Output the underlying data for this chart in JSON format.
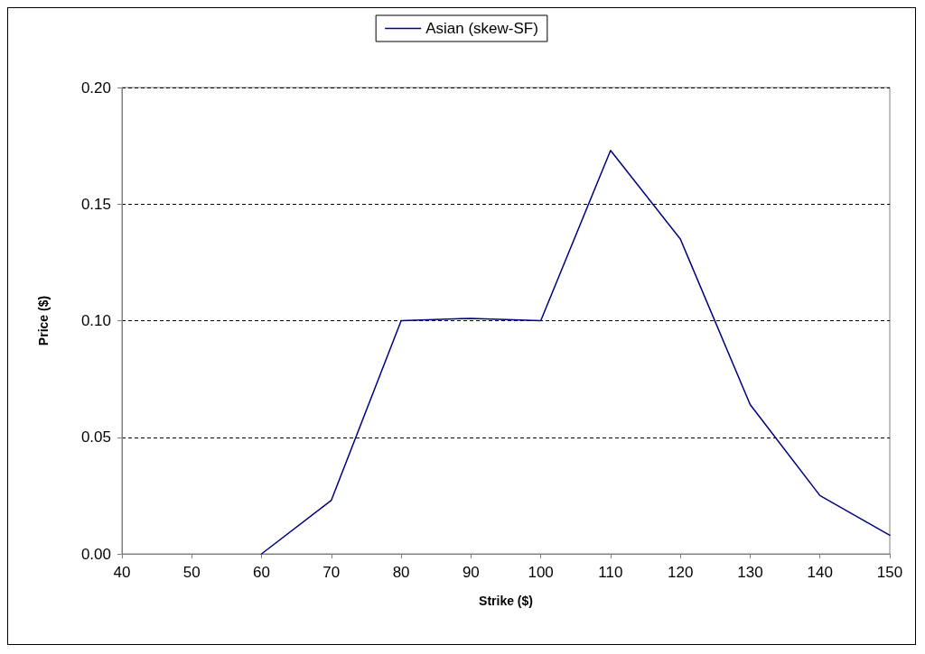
{
  "chart_data": {
    "type": "line",
    "xlabel": "Strike ($)",
    "ylabel": "Price ($)",
    "x": [
      60,
      70,
      80,
      90,
      100,
      110,
      120,
      130,
      140,
      150
    ],
    "series": [
      {
        "name": "Asian (skew-SF)",
        "color": "#000080",
        "values": [
          0,
          0.023,
          0.1,
          0.101,
          0.1,
          0.173,
          0.135,
          0.064,
          0.025,
          0.008
        ]
      }
    ],
    "xlim": [
      40,
      150
    ],
    "xticks": [
      40,
      50,
      60,
      70,
      80,
      90,
      100,
      110,
      120,
      130,
      140,
      150
    ],
    "ylim": [
      0,
      0.2
    ],
    "yticks": [
      {
        "value": 0,
        "label": "0.00"
      },
      {
        "value": 0.05,
        "label": "0.05"
      },
      {
        "value": 0.1,
        "label": "0.10"
      },
      {
        "value": 0.15,
        "label": "0.15"
      },
      {
        "value": 0.2,
        "label": "0.20"
      }
    ],
    "grid": "y",
    "legend": "top",
    "marker": "none",
    "line_style": "solid"
  }
}
